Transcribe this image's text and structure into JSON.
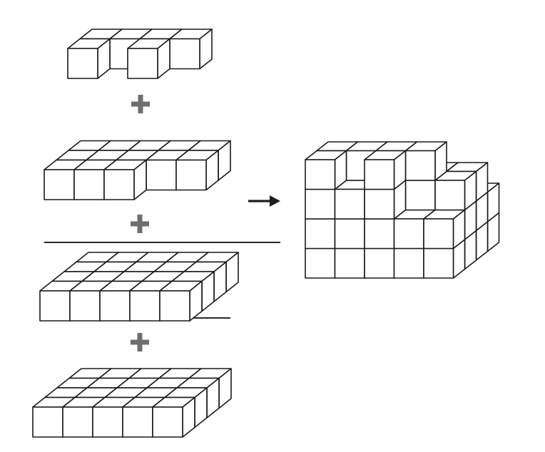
{
  "diagram": {
    "description_free": true,
    "colors": {
      "cube_fill": "#ffffff",
      "cube_edge": "#1a1a1a",
      "plus": "#6e6e6e",
      "arrow": "#1e1e1e",
      "rule": "#2a2a2a"
    },
    "operators": [
      "plus",
      "plus",
      "plus"
    ],
    "result_arrow": "right-arrow-icon",
    "layers": [
      {
        "name": "layer-top",
        "columns": 4,
        "rows": 2,
        "cells": [
          [
            1,
            1,
            1,
            1
          ],
          [
            1,
            0,
            1,
            0
          ]
        ]
      },
      {
        "name": "layer-second",
        "columns": 5,
        "rows": 3,
        "cells": [
          [
            1,
            1,
            1,
            1,
            1
          ],
          [
            1,
            1,
            1,
            1,
            1
          ],
          [
            1,
            1,
            1,
            0,
            0
          ]
        ]
      },
      {
        "name": "layer-third",
        "columns": 5,
        "rows": 4,
        "cells": [
          [
            1,
            1,
            1,
            1,
            1
          ],
          [
            1,
            1,
            1,
            1,
            1
          ],
          [
            1,
            1,
            1,
            1,
            1
          ],
          [
            1,
            1,
            1,
            1,
            1
          ]
        ]
      },
      {
        "name": "layer-bottom",
        "columns": 5,
        "rows": 4,
        "cells": [
          [
            1,
            1,
            1,
            1,
            1
          ],
          [
            1,
            1,
            1,
            1,
            1
          ],
          [
            1,
            1,
            1,
            1,
            1
          ],
          [
            1,
            1,
            1,
            1,
            1
          ]
        ]
      }
    ],
    "assembled_solid": {
      "name": "assembled-stack",
      "levels": 4
    }
  }
}
